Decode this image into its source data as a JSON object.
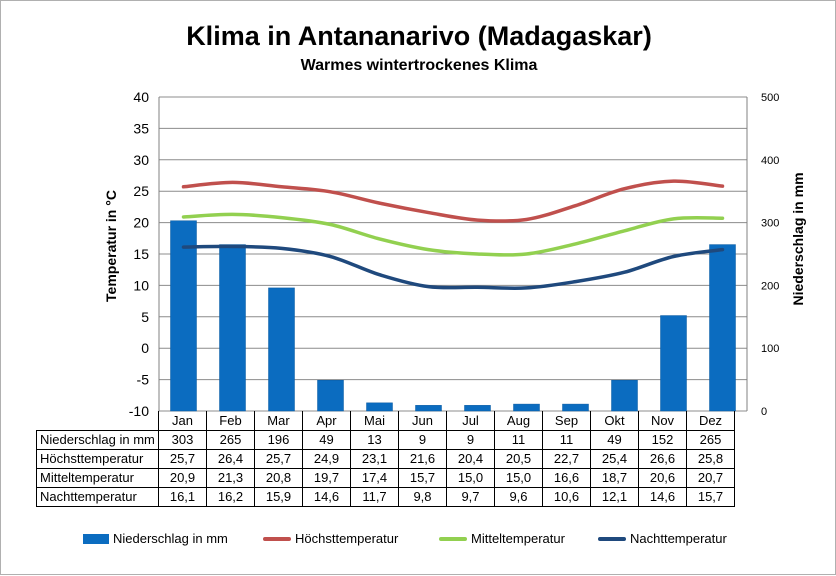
{
  "title": "Klima in Antananarivo (Madagaskar)",
  "subtitle": "Warmes wintertrockenes Klima",
  "chart_data": {
    "type": "bar+line",
    "categories": [
      "Jan",
      "Feb",
      "Mar",
      "Apr",
      "Mai",
      "Jun",
      "Jul",
      "Aug",
      "Sep",
      "Okt",
      "Nov",
      "Dez"
    ],
    "y_left": {
      "label": "Temperatur in °C",
      "min": -10,
      "max": 40,
      "ticks": [
        40,
        35,
        30,
        25,
        20,
        15,
        10,
        5,
        0,
        -5,
        -10
      ]
    },
    "y_right": {
      "label": "Niederschlag in mm",
      "min": 0,
      "max": 500,
      "ticks": [
        500,
        400,
        300,
        200,
        100,
        0
      ]
    },
    "series": [
      {
        "name": "Niederschlag in mm",
        "type": "bar",
        "axis": "right",
        "color": "#0b6cc0",
        "values": [
          303,
          265,
          196,
          49,
          13,
          9,
          9,
          11,
          11,
          49,
          152,
          265
        ]
      },
      {
        "name": "Höchsttemperatur",
        "type": "line",
        "axis": "left",
        "color": "#c0504d",
        "values": [
          25.7,
          26.4,
          25.7,
          24.9,
          23.1,
          21.6,
          20.4,
          20.5,
          22.7,
          25.4,
          26.6,
          25.8
        ]
      },
      {
        "name": "Mitteltemperatur",
        "type": "line",
        "axis": "left",
        "color": "#92d050",
        "values": [
          20.9,
          21.3,
          20.8,
          19.7,
          17.4,
          15.7,
          15.0,
          15.0,
          16.6,
          18.7,
          20.6,
          20.7
        ]
      },
      {
        "name": "Nachttemperatur",
        "type": "line",
        "axis": "left",
        "color": "#1f497d",
        "values": [
          16.1,
          16.2,
          15.9,
          14.6,
          11.7,
          9.8,
          9.7,
          9.6,
          10.6,
          12.1,
          14.6,
          15.7
        ]
      }
    ],
    "legend_position": "bottom",
    "grid": true
  },
  "table": {
    "rows": [
      {
        "label": "Niederschlag in mm",
        "cells": [
          "303",
          "265",
          "196",
          "49",
          "13",
          "9",
          "9",
          "11",
          "11",
          "49",
          "152",
          "265"
        ]
      },
      {
        "label": "Höchsttemperatur",
        "cells": [
          "25,7",
          "26,4",
          "25,7",
          "24,9",
          "23,1",
          "21,6",
          "20,4",
          "20,5",
          "22,7",
          "25,4",
          "26,6",
          "25,8"
        ]
      },
      {
        "label": "Mitteltemperatur",
        "cells": [
          "20,9",
          "21,3",
          "20,8",
          "19,7",
          "17,4",
          "15,7",
          "15,0",
          "15,0",
          "16,6",
          "18,7",
          "20,6",
          "20,7"
        ]
      },
      {
        "label": "Nachttemperatur",
        "cells": [
          "16,1",
          "16,2",
          "15,9",
          "14,6",
          "11,7",
          "9,8",
          "9,7",
          "9,6",
          "10,6",
          "12,1",
          "14,6",
          "15,7"
        ]
      }
    ]
  }
}
